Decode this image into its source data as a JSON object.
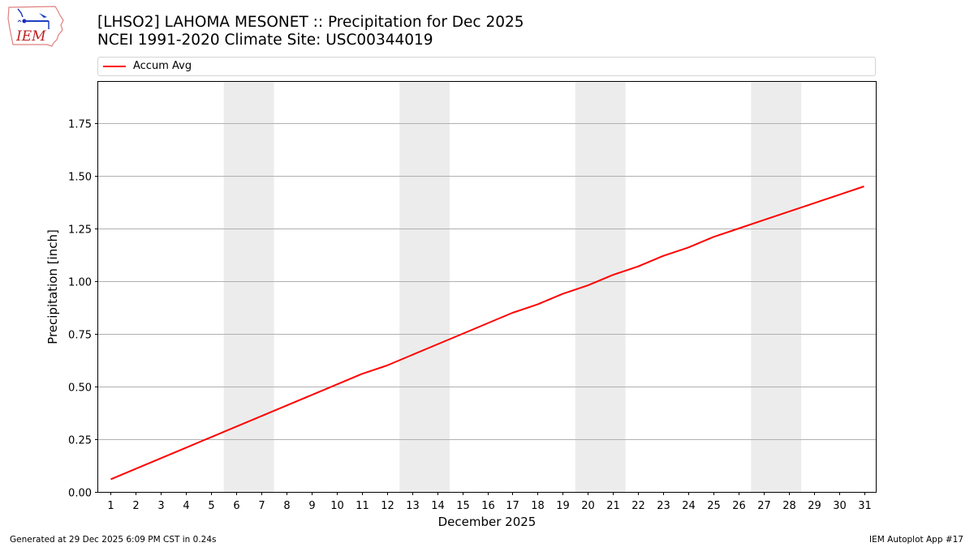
{
  "header": {
    "logo_text": "IEM",
    "title_line1": "[LHSO2] LAHOMA MESONET :: Precipitation for Dec 2025",
    "title_line2": "NCEI 1991-2020 Climate Site: USC00344019"
  },
  "legend": {
    "entries": [
      {
        "label": "Accum Avg",
        "color": "#ff0000"
      }
    ]
  },
  "footer": {
    "left": "Generated at 29 Dec 2025 6:09 PM CST in 0.24s",
    "right": "IEM Autoplot App #17"
  },
  "chart_data": {
    "type": "line",
    "title": "[LHSO2] LAHOMA MESONET :: Precipitation for Dec 2025",
    "subtitle": "NCEI 1991-2020 Climate Site: USC00344019",
    "xlabel": "December 2025",
    "ylabel": "Precipitation [inch]",
    "x": [
      1,
      2,
      3,
      4,
      5,
      6,
      7,
      8,
      9,
      10,
      11,
      12,
      13,
      14,
      15,
      16,
      17,
      18,
      19,
      20,
      21,
      22,
      23,
      24,
      25,
      26,
      27,
      28,
      29,
      30,
      31
    ],
    "series": [
      {
        "name": "Accum Avg",
        "color": "#ff0000",
        "values": [
          0.06,
          0.11,
          0.16,
          0.21,
          0.26,
          0.31,
          0.36,
          0.41,
          0.46,
          0.51,
          0.56,
          0.6,
          0.65,
          0.7,
          0.75,
          0.8,
          0.85,
          0.89,
          0.94,
          0.98,
          1.03,
          1.07,
          1.12,
          1.16,
          1.21,
          1.25,
          1.29,
          1.33,
          1.37,
          1.41,
          1.45
        ]
      }
    ],
    "xticks": [
      "1",
      "2",
      "3",
      "4",
      "5",
      "6",
      "7",
      "8",
      "9",
      "10",
      "11",
      "12",
      "13",
      "14",
      "15",
      "16",
      "17",
      "18",
      "19",
      "20",
      "21",
      "22",
      "23",
      "24",
      "25",
      "26",
      "27",
      "28",
      "29",
      "30",
      "31"
    ],
    "yticks": [
      "0.00",
      "0.25",
      "0.50",
      "0.75",
      "1.00",
      "1.25",
      "1.50",
      "1.75"
    ],
    "ylim": [
      0,
      1.95
    ],
    "xlim": [
      0.5,
      31.5
    ],
    "grid": "horizontal",
    "legend_position": "top",
    "shaded_spans": [
      [
        5.5,
        7.5
      ],
      [
        12.5,
        14.5
      ],
      [
        19.5,
        21.5
      ],
      [
        26.5,
        28.5
      ]
    ],
    "shade_color": "#ececec"
  }
}
